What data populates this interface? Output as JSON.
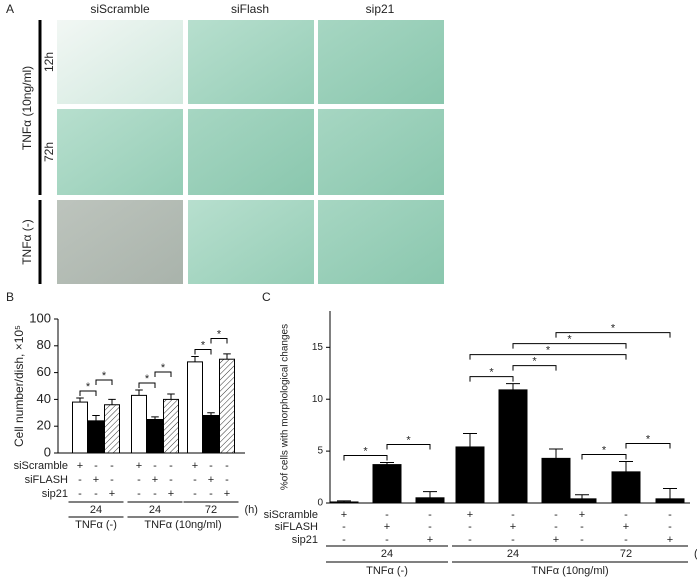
{
  "panel_labels": [
    "A",
    "B",
    "C"
  ],
  "images": {
    "columns": [
      "siScramble",
      "siFlash",
      "sip21"
    ],
    "condition_labels": [
      "TNFα (10ng/ml)",
      "TNFα (-)"
    ],
    "time_labels": [
      "12h",
      "72h"
    ]
  },
  "chart_data": [
    {
      "type": "bar",
      "ylabel": "Cell number/dish, ×10⁵",
      "ylim": [
        0,
        100
      ],
      "yticks": [
        0,
        20,
        40,
        60,
        80,
        100
      ],
      "values": [
        38,
        24,
        36,
        43,
        25,
        40,
        68,
        28,
        70
      ],
      "errors": [
        3,
        4,
        4,
        4,
        2,
        4,
        4,
        2,
        4
      ],
      "bar_fills": [
        "#ffffff",
        "#000000",
        "hatched",
        "#ffffff",
        "#000000",
        "hatched",
        "#ffffff",
        "#000000",
        "hatched"
      ],
      "treatments": [
        {
          "name": "siScramble",
          "signs": [
            "+",
            "-",
            "-",
            "+",
            "-",
            "-",
            "+",
            "-",
            "-"
          ]
        },
        {
          "name": "siFLASH",
          "signs": [
            "-",
            "+",
            "-",
            "-",
            "+",
            "-",
            "-",
            "+",
            "-"
          ]
        },
        {
          "name": "sip21",
          "signs": [
            "-",
            "-",
            "+",
            "-",
            "-",
            "+",
            "-",
            "-",
            "+"
          ]
        }
      ],
      "times": [
        "24",
        "24",
        "72"
      ],
      "time_unit": "(h)",
      "conditions": [
        {
          "label": "TNFα (-)",
          "span": [
            0,
            0
          ]
        },
        {
          "label": "TNFα (10ng/ml)",
          "span": [
            1,
            2
          ]
        }
      ],
      "comparisons": [
        {
          "between": [
            0,
            1
          ],
          "label": "*"
        },
        {
          "between": [
            1,
            2
          ],
          "label": "*"
        },
        {
          "between": [
            3,
            4
          ],
          "label": "*"
        },
        {
          "between": [
            4,
            5
          ],
          "label": "*"
        },
        {
          "between": [
            6,
            7
          ],
          "label": "*"
        },
        {
          "between": [
            7,
            8
          ],
          "label": "*"
        }
      ]
    },
    {
      "type": "bar",
      "ylabel": "%of cells with morphological changes",
      "ylim": [
        0,
        18.5
      ],
      "yticks": [
        0,
        5,
        10,
        15
      ],
      "values": [
        0.1,
        3.7,
        0.5,
        5.4,
        10.9,
        4.3,
        0.4,
        3.0,
        0.4
      ],
      "errors": [
        0.1,
        0.2,
        0.6,
        1.3,
        0.6,
        0.9,
        0.4,
        1.0,
        1.0
      ],
      "bar_fills": [
        "#000000",
        "#000000",
        "#000000",
        "#000000",
        "#000000",
        "#000000",
        "#000000",
        "#000000",
        "#000000"
      ],
      "treatments": [
        {
          "name": "siScramble",
          "signs": [
            "+",
            "-",
            "-",
            "+",
            "-",
            "-",
            "+",
            "-",
            "-"
          ]
        },
        {
          "name": "siFLASH",
          "signs": [
            "-",
            "+",
            "-",
            "-",
            "+",
            "-",
            "-",
            "+",
            "-"
          ]
        },
        {
          "name": "sip21",
          "signs": [
            "-",
            "-",
            "+",
            "-",
            "-",
            "+",
            "-",
            "-",
            "+"
          ]
        }
      ],
      "times": [
        "24",
        "24",
        "72"
      ],
      "time_unit": "(h)",
      "conditions": [
        {
          "label": "TNFα (-)",
          "span": [
            0,
            0
          ]
        },
        {
          "label": "TNFα (10ng/ml)",
          "span": [
            1,
            2
          ]
        }
      ],
      "comparisons": [
        {
          "between": [
            0,
            1
          ],
          "label": "*"
        },
        {
          "between": [
            1,
            2
          ],
          "label": "*"
        },
        {
          "between": [
            3,
            4
          ],
          "label": "*"
        },
        {
          "between": [
            4,
            5
          ],
          "label": "*"
        },
        {
          "between": [
            6,
            7
          ],
          "label": "*"
        },
        {
          "between": [
            7,
            8
          ],
          "label": "*"
        },
        {
          "between": [
            3,
            7
          ],
          "label": "*"
        },
        {
          "between": [
            4,
            7
          ],
          "label": "*"
        },
        {
          "between": [
            5,
            8
          ],
          "label": "*"
        }
      ]
    }
  ]
}
